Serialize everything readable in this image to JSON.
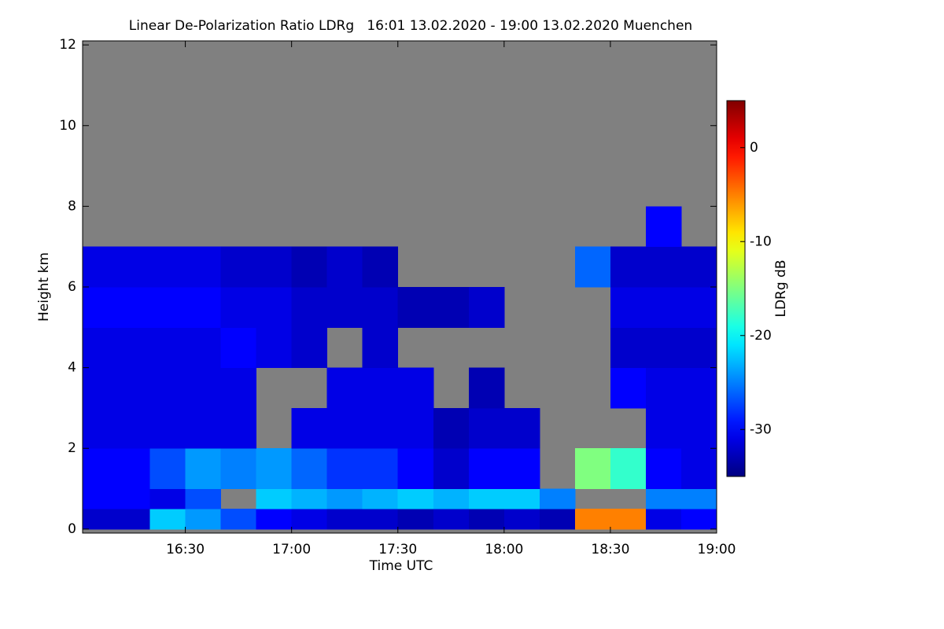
{
  "chart_data": {
    "type": "heatmap",
    "title": "Linear De-Polarization Ratio LDRg   16:01 13.02.2020 - 19:00 13.02.2020 Muenchen",
    "xlabel": "Time UTC",
    "ylabel": "Height km",
    "colorbar_label": "LDRg dB",
    "xlim": [
      961,
      1140
    ],
    "ylim": [
      -0.1,
      12.1
    ],
    "xticks": [
      {
        "value": 990,
        "label": "16:30"
      },
      {
        "value": 1020,
        "label": "17:00"
      },
      {
        "value": 1050,
        "label": "17:30"
      },
      {
        "value": 1080,
        "label": "18:00"
      },
      {
        "value": 1110,
        "label": "18:30"
      },
      {
        "value": 1140,
        "label": "19:00"
      }
    ],
    "yticks": [
      0,
      2,
      4,
      6,
      8,
      10,
      12
    ],
    "zlim": [
      -35,
      5
    ],
    "zticks": [
      0,
      -10,
      -20,
      -30
    ],
    "background": "#808080",
    "x_edges": [
      961,
      970,
      980,
      990,
      1000,
      1010,
      1020,
      1030,
      1040,
      1050,
      1060,
      1070,
      1080,
      1090,
      1100,
      1110,
      1120,
      1130,
      1140
    ],
    "y_edges": [
      0,
      0.5,
      1,
      2,
      3,
      4,
      5,
      6,
      7,
      8
    ],
    "z": [
      [
        -32,
        -32,
        -22,
        -24,
        -27,
        -30,
        -31,
        -32,
        -32,
        -33,
        -32,
        -33,
        -32,
        -33,
        -5,
        -5,
        -31,
        -30
      ],
      [
        -30,
        -30,
        -31,
        -27,
        null,
        -22,
        -23,
        -24,
        -23,
        -22,
        -23,
        -22,
        -22,
        -25,
        null,
        null,
        -25,
        -25
      ],
      [
        -30,
        -30,
        -27,
        -24,
        -25,
        -24,
        -26,
        -28,
        -28,
        -30,
        -32,
        -30,
        -30,
        null,
        -15,
        -18,
        -30,
        -31
      ],
      [
        -31,
        -31,
        -31,
        -31,
        -31,
        null,
        -31,
        -31,
        -31,
        -31,
        -33,
        -32,
        -32,
        null,
        null,
        null,
        -31,
        -31
      ],
      [
        -31,
        -31,
        -31,
        -31,
        -31,
        null,
        null,
        -31,
        -31,
        -31,
        null,
        -33,
        null,
        null,
        null,
        -30,
        -31,
        -31
      ],
      [
        -31,
        -31,
        -31,
        -31,
        -30,
        -31,
        -32,
        null,
        -32,
        null,
        null,
        null,
        null,
        null,
        null,
        -32,
        -32,
        -32
      ],
      [
        -30,
        -30,
        -30,
        -30,
        -31,
        -31,
        -32,
        -32,
        -32,
        -33,
        -33,
        -32,
        null,
        null,
        null,
        -31,
        -31,
        -31
      ],
      [
        -31,
        -31,
        -31,
        -31,
        -32,
        -32,
        -33,
        -32,
        -33,
        null,
        null,
        null,
        null,
        null,
        -26,
        -32,
        -32,
        -32
      ],
      [
        null,
        null,
        null,
        null,
        null,
        null,
        null,
        null,
        null,
        null,
        null,
        null,
        null,
        null,
        null,
        null,
        -30,
        null
      ]
    ]
  }
}
